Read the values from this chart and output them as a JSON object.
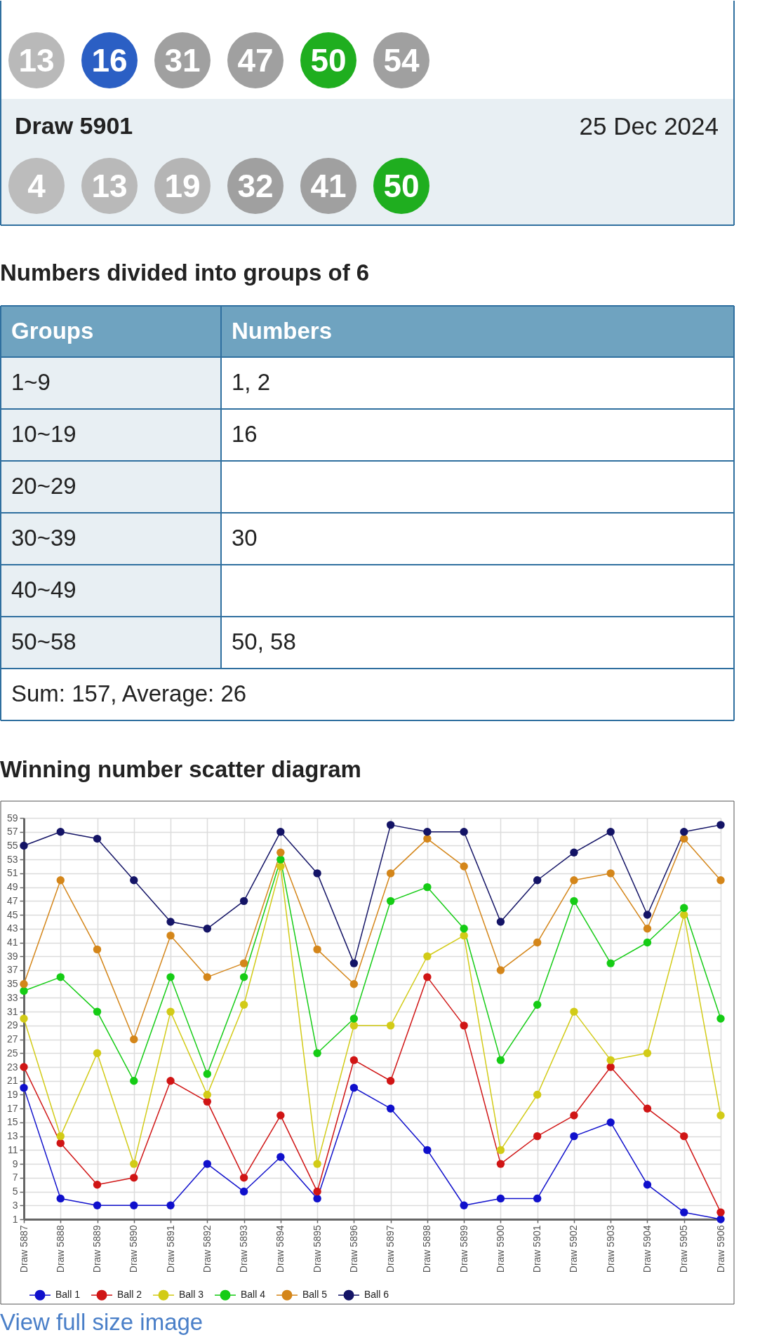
{
  "chart_data": [
    {
      "type": "other",
      "categories": [
        "13",
        "16",
        "31",
        "47",
        "50",
        "54"
      ],
      "colors": [
        "#b9b9b9",
        "#2b5fc4",
        "#a0a0a0",
        "#a0a0a0",
        "#1fae1f",
        "#a0a0a0"
      ]
    },
    {
      "type": "other",
      "annotations": [
        "Draw 5901",
        "25 Dec 2024"
      ],
      "categories": [
        "4",
        "13",
        "19",
        "32",
        "41",
        "50"
      ],
      "colors": [
        "#bcbcbc",
        "#b9b9b9",
        "#b5b5b5",
        "#a0a0a0",
        "#a0a0a0",
        "#1fae1f"
      ]
    },
    {
      "type": "other",
      "title": "Numbers divided into groups of 6",
      "categories": [
        "Groups",
        "Numbers"
      ],
      "y_categories": [
        "1~9",
        "10~19",
        "20~29",
        "30~39",
        "40~49",
        "50~58"
      ],
      "cell_labels": [
        [
          "1, 2"
        ],
        [
          "16"
        ],
        [
          null
        ],
        [
          "30"
        ],
        [
          null
        ],
        [
          "50, 58"
        ]
      ],
      "annotations": [
        "Sum: 157, Average: 26"
      ]
    },
    {
      "type": "line",
      "title": "Winning number scatter diagram",
      "categories": [
        "Draw 5887",
        "Draw 5888",
        "Draw 5889",
        "Draw 5890",
        "Draw 5891",
        "Draw 5892",
        "Draw 5893",
        "Draw 5894",
        "Draw 5895",
        "Draw 5896",
        "Draw 5897",
        "Draw 5898",
        "Draw 5899",
        "Draw 5900",
        "Draw 5901",
        "Draw 5902",
        "Draw 5903",
        "Draw 5904",
        "Draw 5905",
        "Draw 5906"
      ],
      "series": [
        {
          "name": "Ball 1",
          "color": "#1010cc",
          "values": [
            20,
            4,
            3,
            3,
            3,
            9,
            5,
            10,
            4,
            20,
            17,
            11,
            3,
            4,
            4,
            13,
            15,
            6,
            2,
            1
          ]
        },
        {
          "name": "Ball 2",
          "color": "#d01515",
          "values": [
            23,
            12,
            6,
            7,
            21,
            18,
            7,
            16,
            5,
            24,
            21,
            36,
            29,
            9,
            13,
            16,
            23,
            17,
            13,
            2
          ]
        },
        {
          "name": "Ball 3",
          "color": "#d2cb17",
          "values": [
            30,
            13,
            25,
            9,
            31,
            19,
            32,
            52,
            9,
            29,
            29,
            39,
            42,
            11,
            19,
            31,
            24,
            25,
            45,
            16
          ]
        },
        {
          "name": "Ball 4",
          "color": "#15cc15",
          "values": [
            34,
            36,
            31,
            21,
            36,
            22,
            36,
            53,
            25,
            30,
            47,
            49,
            43,
            24,
            32,
            47,
            38,
            41,
            46,
            30
          ]
        },
        {
          "name": "Ball 5",
          "color": "#d4861a",
          "values": [
            35,
            50,
            40,
            27,
            42,
            36,
            38,
            54,
            40,
            35,
            51,
            56,
            52,
            37,
            41,
            50,
            51,
            43,
            56,
            50
          ]
        },
        {
          "name": "Ball 6",
          "color": "#141466",
          "values": [
            55,
            57,
            56,
            50,
            44,
            43,
            47,
            57,
            51,
            38,
            58,
            57,
            57,
            44,
            50,
            54,
            57,
            45,
            57,
            58
          ]
        }
      ],
      "ylim": [
        1,
        59
      ],
      "yticks": [
        1,
        3,
        5,
        7,
        9,
        11,
        13,
        15,
        17,
        19,
        21,
        23,
        25,
        27,
        29,
        31,
        33,
        35,
        37,
        39,
        41,
        43,
        45,
        47,
        49,
        51,
        53,
        55,
        57,
        59
      ],
      "grid": true,
      "legend": "bottom",
      "marker": "circle",
      "line_style": "solid",
      "annotations": [
        "View full size image"
      ]
    }
  ]
}
